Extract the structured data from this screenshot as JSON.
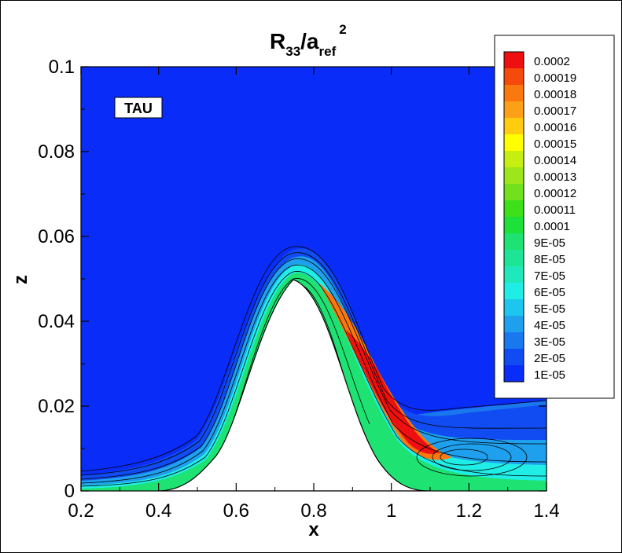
{
  "chart_data": {
    "type": "contour",
    "title": {
      "base": "R",
      "sub1": "33",
      "slash": "/a",
      "sub2": "ref",
      "sup": "2"
    },
    "xlabel": "x",
    "ylabel": "z",
    "xlim": [
      0.2,
      1.4
    ],
    "ylim": [
      0,
      0.1
    ],
    "x_ticks": [
      "0.2",
      "0.4",
      "0.6",
      "0.8",
      "1",
      "1.2",
      "1.4"
    ],
    "y_ticks": [
      "0",
      "0.02",
      "0.04",
      "0.06",
      "0.08",
      "0.1"
    ],
    "annotation": "TAU",
    "legend_position": "top-right",
    "legend": {
      "levels": [
        "0.0002",
        "0.00019",
        "0.00018",
        "0.00017",
        "0.00016",
        "0.00015",
        "0.00014",
        "0.00013",
        "0.00012",
        "0.00011",
        "0.0001",
        "9E-05",
        "8E-05",
        "7E-05",
        "6E-05",
        "5E-05",
        "4E-05",
        "3E-05",
        "2E-05",
        "1E-05"
      ],
      "colors": [
        "#ee1010",
        "#f54a0c",
        "#fa7810",
        "#fca018",
        "#ffcc10",
        "#ffff00",
        "#c4ef10",
        "#9ee61c",
        "#72e01c",
        "#3ee01a",
        "#1ee03a",
        "#1ee272",
        "#1ee498",
        "#1ee8bc",
        "#20eee6",
        "#1cc6ee",
        "#1ea0ee",
        "#1a78ee",
        "#104cf2",
        "#0a2cf8"
      ]
    },
    "bump": {
      "center_x": 0.75,
      "peak_z": 0.05
    }
  }
}
